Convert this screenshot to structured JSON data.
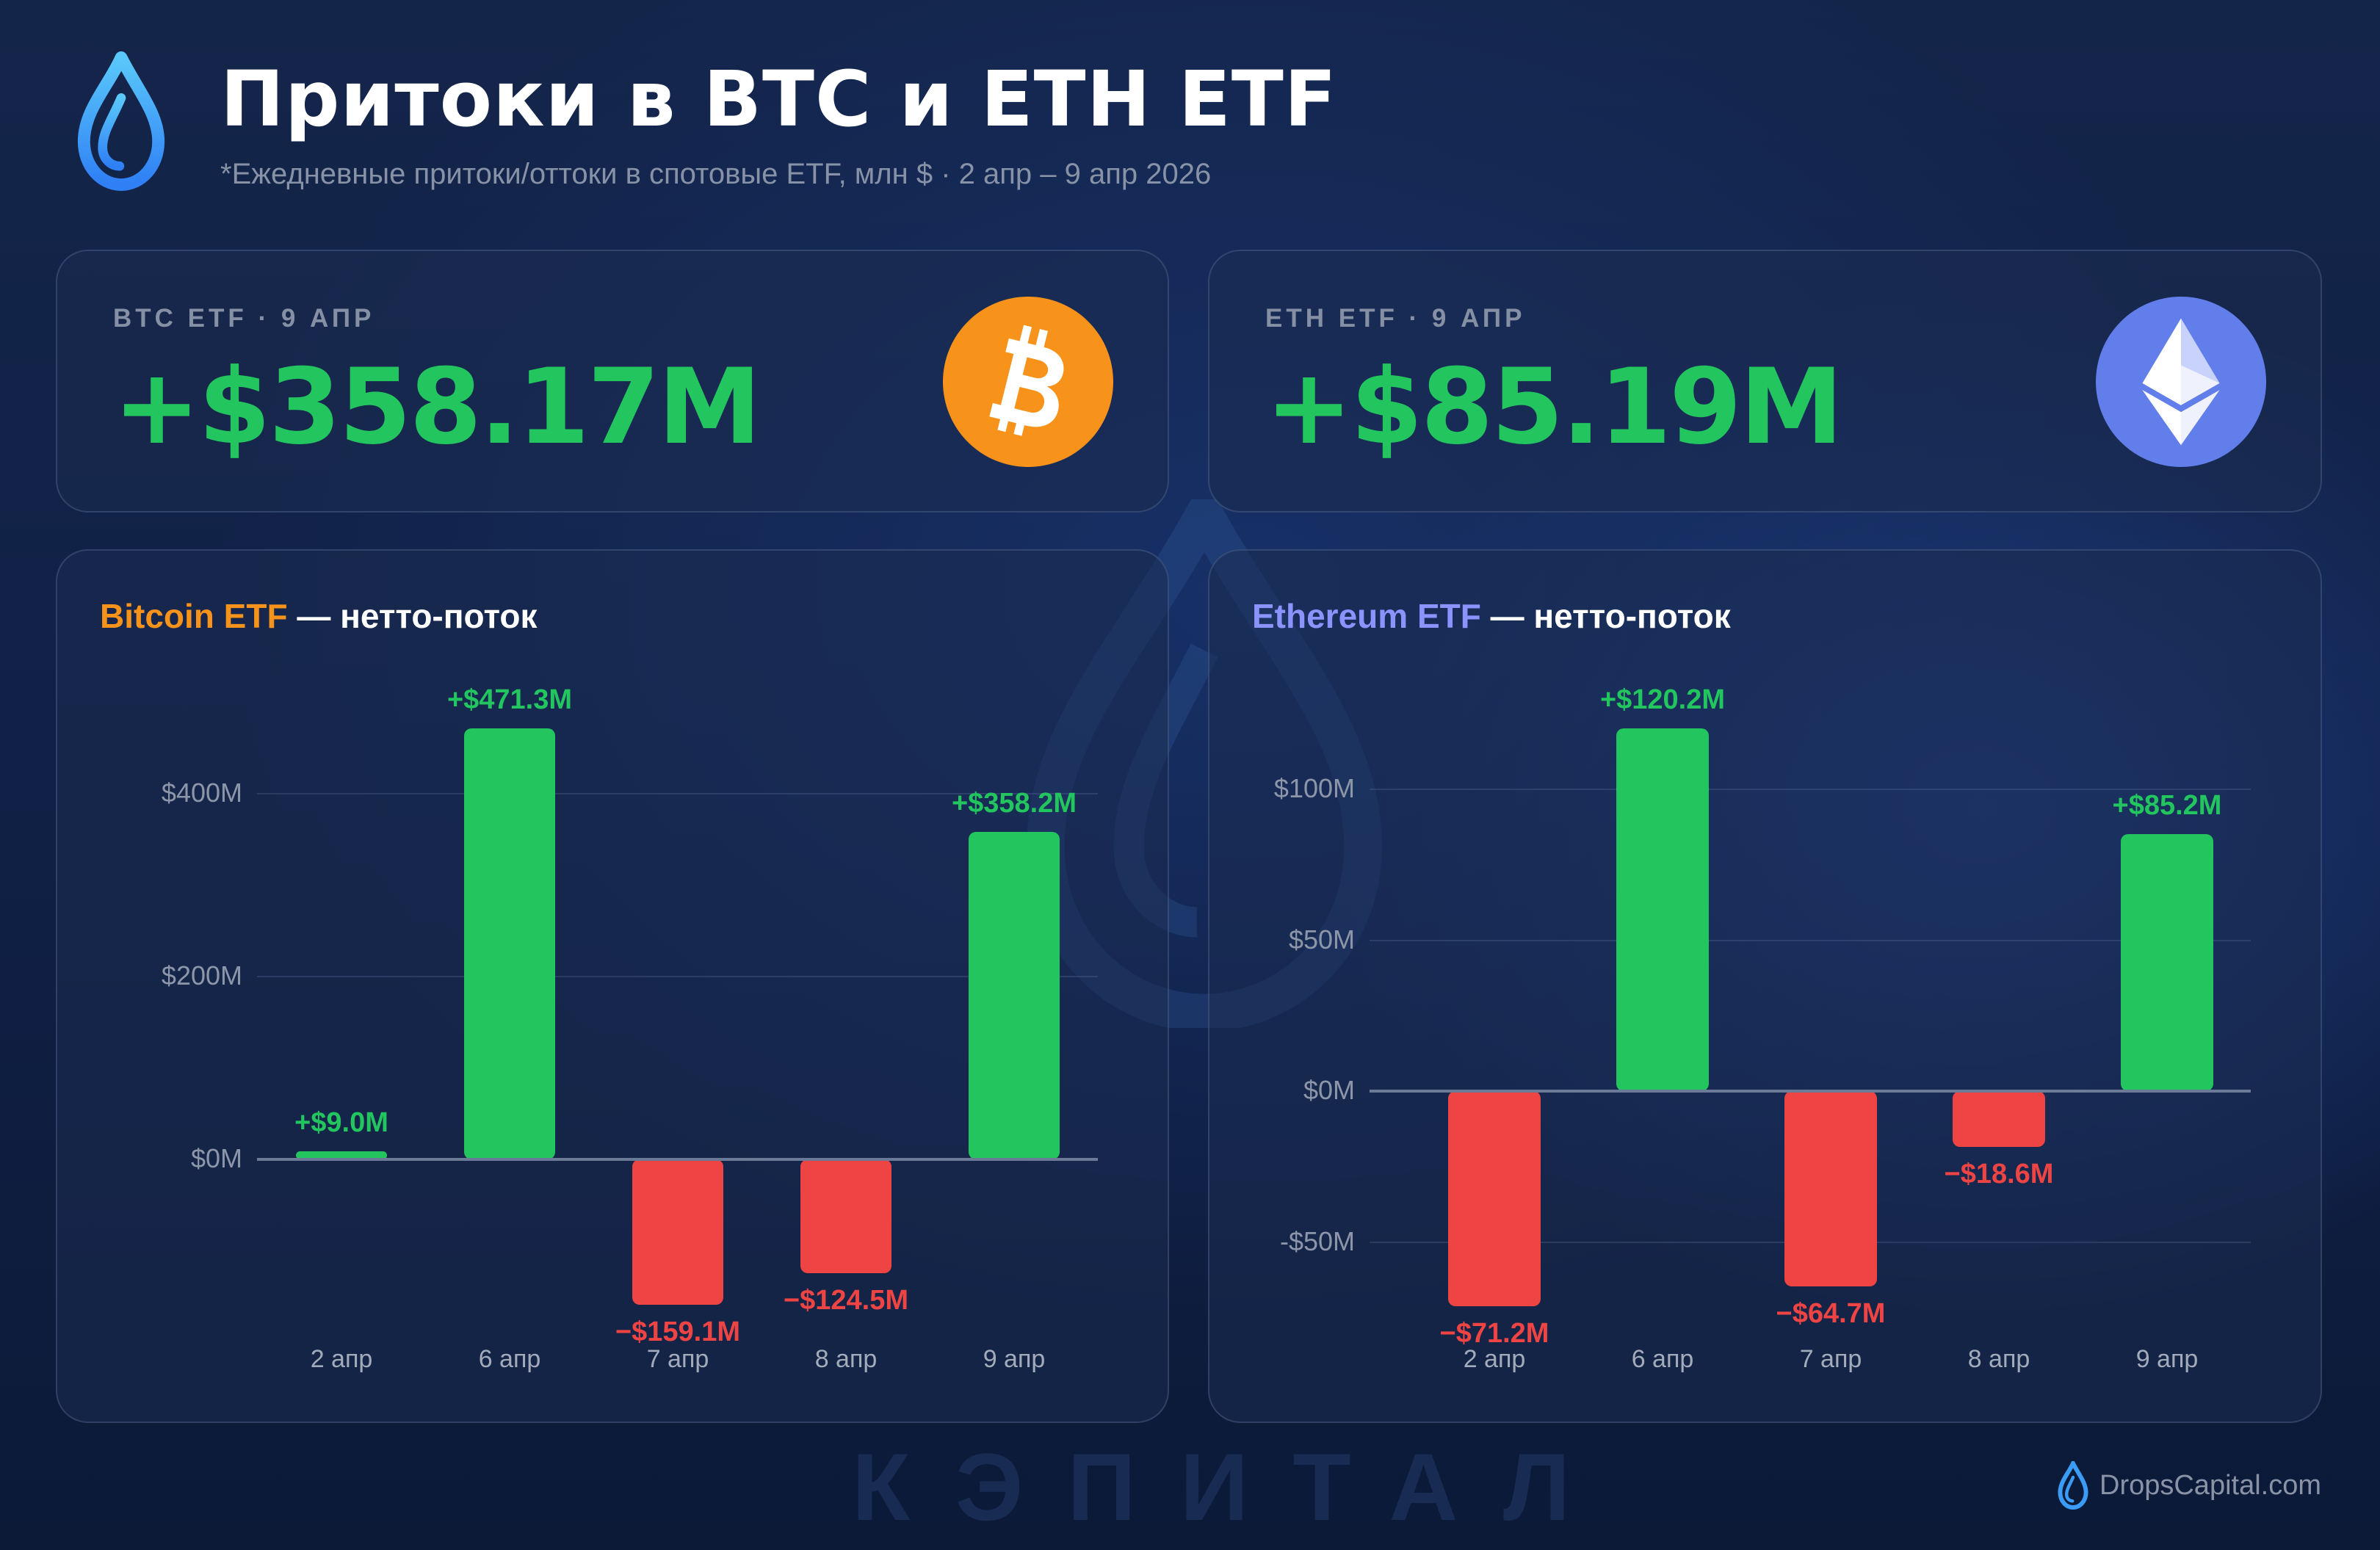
{
  "header": {
    "title": "Притоки в BTC и ETH ETF",
    "subtitle": "*Ежедневные притоки/оттоки в спотовые ETF, млн $ · 2 апр – 9 апр 2026",
    "logo_icon": "drop-icon"
  },
  "kpis": [
    {
      "label": "BTC ETF · 9 АПР",
      "value": "+$358.17M",
      "icon": "bitcoin-icon",
      "icon_color": "#f7931a"
    },
    {
      "label": "ETH ETF · 9 АПР",
      "value": "+$85.19M",
      "icon": "ethereum-icon",
      "icon_color": "#627eea"
    }
  ],
  "charts": [
    {
      "title_accent": "Bitcoin ETF",
      "title_rest": " — нетто-поток",
      "accent_color": "#f7931a"
    },
    {
      "title_accent": "Ethereum ETF",
      "title_rest": " — нетто-поток",
      "accent_color": "#8b93ff"
    }
  ],
  "colors": {
    "positive": "#22c55e",
    "negative": "#ef4444",
    "background": "#12234a"
  },
  "watermark": "КЭПИТАЛ",
  "footer": {
    "brand": "DropsCapital.com"
  },
  "chart_data": [
    {
      "type": "bar",
      "title": "Bitcoin ETF — нетто-поток",
      "categories": [
        "2 апр",
        "6 апр",
        "7 апр",
        "8 апр",
        "9 апр"
      ],
      "values": [
        9.0,
        471.3,
        -159.1,
        -124.5,
        358.2
      ],
      "labels": [
        "+$9.0M",
        "+$471.3M",
        "−$159.1M",
        "−$124.5M",
        "+$358.2M"
      ],
      "yticks": [
        0,
        200,
        400
      ],
      "ytick_labels": [
        "$0M",
        "$200M",
        "$400M"
      ],
      "ylabel": "",
      "xlabel": "",
      "ylim": [
        -175,
        500
      ],
      "grid": true,
      "legend": null
    },
    {
      "type": "bar",
      "title": "Ethereum ETF — нетто-поток",
      "categories": [
        "2 апр",
        "6 апр",
        "7 апр",
        "8 апр",
        "9 апр"
      ],
      "values": [
        -71.2,
        120.2,
        -64.7,
        -18.6,
        85.2
      ],
      "labels": [
        "−$71.2M",
        "+$120.2M",
        "−$64.7M",
        "−$18.6M",
        "+$85.2M"
      ],
      "yticks": [
        -50,
        0,
        50,
        100
      ],
      "ytick_labels": [
        "-$50M",
        "$0M",
        "$50M",
        "$100M"
      ],
      "ylabel": "",
      "xlabel": "",
      "ylim": [
        -80,
        130
      ],
      "grid": true,
      "legend": null
    }
  ]
}
